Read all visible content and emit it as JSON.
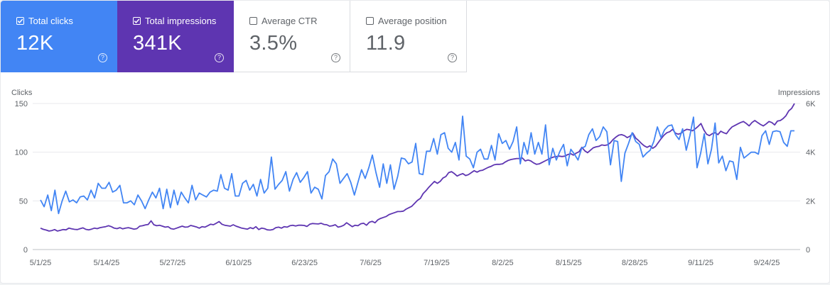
{
  "metrics": [
    {
      "label": "Total clicks",
      "value": "12K",
      "checked": true
    },
    {
      "label": "Total impressions",
      "value": "341K",
      "checked": true
    },
    {
      "label": "Average CTR",
      "value": "3.5%",
      "checked": false
    },
    {
      "label": "Average position",
      "value": "11.9",
      "checked": false
    }
  ],
  "chart_data": {
    "type": "line",
    "xlabel": "",
    "ylabel_left": "Clicks",
    "ylabel_right": "Impressions",
    "y_left_ticks": [
      "0",
      "50",
      "100",
      "150"
    ],
    "y_right_ticks": [
      "0",
      "2K",
      "4K",
      "6K"
    ],
    "ylim_left": [
      0,
      150
    ],
    "ylim_right": [
      0,
      6000
    ],
    "x_ticks": [
      "5/1/25",
      "5/14/25",
      "5/27/25",
      "6/10/25",
      "6/23/25",
      "7/6/25",
      "7/19/25",
      "8/2/25",
      "8/15/25",
      "8/28/25",
      "9/11/25",
      "9/24/25"
    ],
    "grid": true,
    "series": [
      {
        "name": "Total clicks",
        "axis": "left",
        "color": "#4285f4",
        "values": [
          51,
          44,
          56,
          40,
          61,
          37,
          50,
          60,
          49,
          51,
          48,
          54,
          55,
          51,
          61,
          53,
          68,
          63,
          63,
          69,
          59,
          61,
          66,
          48,
          48,
          50,
          46,
          56,
          50,
          42,
          51,
          59,
          53,
          63,
          42,
          62,
          43,
          61,
          46,
          59,
          53,
          48,
          66,
          51,
          58,
          56,
          54,
          59,
          61,
          60,
          77,
          63,
          61,
          78,
          55,
          55,
          68,
          71,
          61,
          67,
          55,
          72,
          58,
          63,
          95,
          62,
          67,
          71,
          80,
          60,
          72,
          79,
          69,
          74,
          80,
          58,
          64,
          62,
          52,
          76,
          80,
          93,
          88,
          68,
          73,
          78,
          69,
          56,
          69,
          82,
          73,
          84,
          97,
          79,
          64,
          88,
          68,
          87,
          62,
          75,
          94,
          93,
          88,
          90,
          109,
          78,
          77,
          101,
          101,
          114,
          98,
          118,
          120,
          104,
          100,
          110,
          92,
          137,
          96,
          93,
          84,
          100,
          103,
          93,
          93,
          107,
          92,
          119,
          109,
          112,
          103,
          111,
          126,
          88,
          110,
          98,
          120,
          98,
          110,
          98,
          128,
          87,
          104,
          92,
          101,
          108,
          86,
          103,
          98,
          92,
          104,
          106,
          118,
          124,
          112,
          116,
          126,
          121,
          87,
          112,
          111,
          70,
          99,
          109,
          120,
          111,
          108,
          95,
          99,
          102,
          111,
          126,
          115,
          123,
          127,
          128,
          118,
          113,
          124,
          102,
          117,
          136,
          84,
          99,
          119,
          88,
          103,
          130,
          89,
          96,
          81,
          91,
          90,
          72,
          105,
          94,
          97,
          100,
          100,
          98,
          117,
          122,
          108,
          121,
          122,
          121,
          110,
          106,
          122,
          122
        ]
      },
      {
        "name": "Total impressions",
        "axis": "right",
        "color": "#5e35b1",
        "values": [
          880,
          830,
          800,
          760,
          780,
          820,
          760,
          790,
          820,
          810,
          880,
          850,
          830,
          820,
          860,
          890,
          830,
          810,
          840,
          880,
          860,
          900,
          920,
          940,
          980,
          940,
          880,
          860,
          900,
          850,
          880,
          900,
          870,
          840,
          860,
          960,
          980,
          1010,
          1030,
          1180,
          1020,
          980,
          1000,
          960,
          920,
          940,
          860,
          840,
          880,
          920,
          960,
          920,
          930,
          990,
          960,
          930,
          880,
          940,
          920,
          980,
          1040,
          1020,
          1080,
          1150,
          1040,
          1000,
          980,
          960,
          1020,
          960,
          920,
          880,
          860,
          840,
          900,
          860,
          940,
          820,
          880,
          860,
          810,
          800,
          820,
          900,
          920,
          880,
          940,
          920,
          980,
          1000,
          970,
          1000,
          1000,
          990,
          950,
          1040,
          1070,
          1060,
          1050,
          1080,
          1030,
          1020,
          960,
          980,
          1020,
          920,
          950,
          1000,
          1100,
          1020,
          940,
          1000,
          980,
          1060,
          1080,
          1000,
          1120,
          1160,
          1100,
          1220,
          1280,
          1320,
          1360,
          1440,
          1480,
          1520,
          1560,
          1560,
          1580,
          1660,
          1720,
          1780,
          1900,
          2020,
          2100,
          2300,
          2420,
          2560,
          2680,
          2800,
          2720,
          2800,
          2940,
          3000,
          3160,
          3200,
          3120,
          3020,
          3080,
          3120,
          3040,
          3080,
          3160,
          3240,
          3180,
          3240,
          3260,
          3320,
          3380,
          3420,
          3480,
          3500,
          3500,
          3520,
          3600,
          3660,
          3700,
          3720,
          3740,
          3740,
          3760,
          3640,
          3680,
          3640,
          3560,
          3500,
          3520,
          3580,
          3640,
          3700,
          3760,
          3800,
          3820,
          3840,
          3820,
          3840,
          3900,
          3940,
          3880,
          3960,
          4020,
          4200,
          4060,
          3980,
          4080,
          4180,
          4220,
          4240,
          4300,
          4280,
          4300,
          4380,
          4520,
          4620,
          4700,
          4720,
          4680,
          4600,
          4660,
          4780,
          4580,
          4480,
          4360,
          4260,
          4200,
          4260,
          4160,
          4240,
          4400,
          4560,
          4700,
          4800,
          4840,
          4940,
          4780,
          4740,
          4780,
          4880,
          4940,
          4920,
          4880,
          4960,
          5060,
          5180,
          4920,
          4740,
          4680,
          4760,
          4800,
          4720,
          4860,
          4800,
          4760,
          4920,
          5040,
          5100,
          5160,
          5220,
          5260,
          5180,
          5080,
          5220,
          5300,
          5220,
          5140,
          5080,
          5160,
          5260,
          5220,
          5120,
          5280,
          5300,
          5380,
          5500,
          5700,
          5800,
          6000
        ]
      }
    ]
  }
}
